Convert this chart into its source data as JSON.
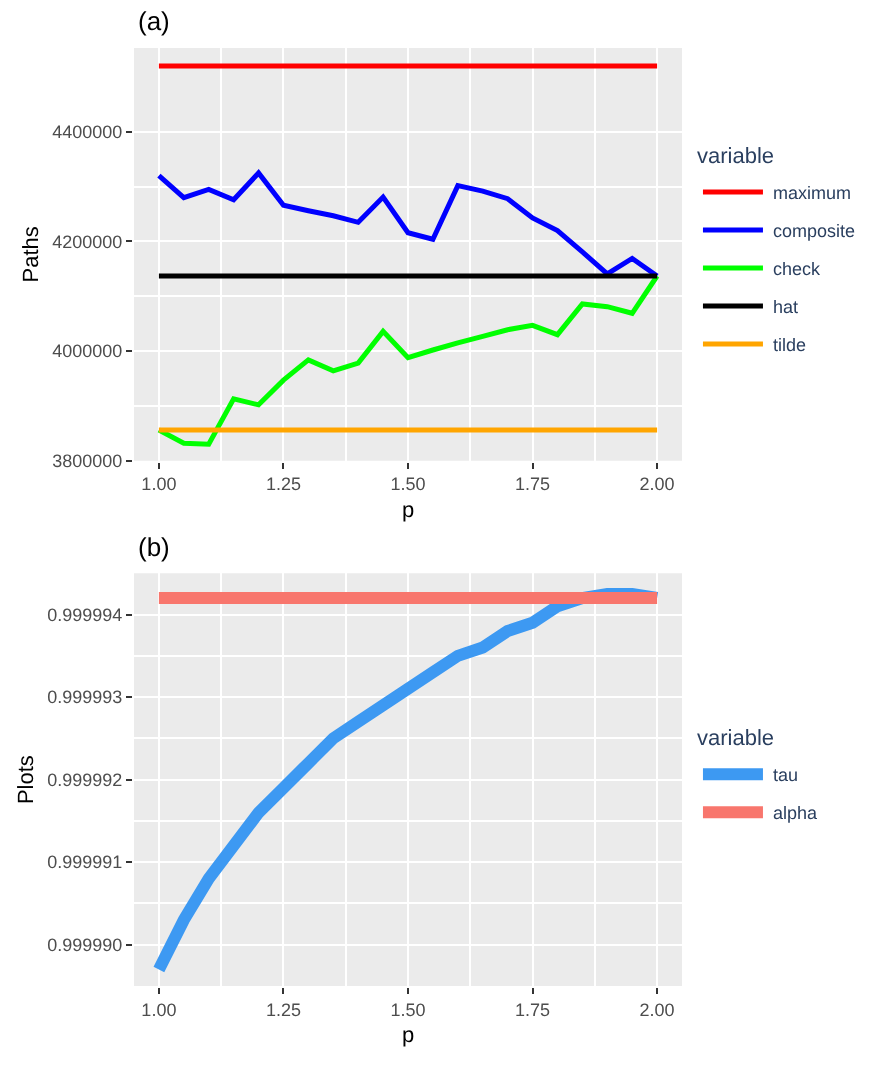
{
  "chart_data": [
    {
      "type": "line",
      "title": "(a)",
      "xlabel": "p",
      "ylabel": "Paths",
      "legend_title": "variable",
      "legend": "right",
      "grid": true,
      "x": [
        1.0,
        1.05,
        1.1,
        1.15,
        1.2,
        1.25,
        1.3,
        1.35,
        1.4,
        1.45,
        1.5,
        1.55,
        1.6,
        1.65,
        1.7,
        1.75,
        1.8,
        1.85,
        1.9,
        1.95,
        2.0
      ],
      "series": [
        {
          "name": "maximum",
          "color": "#ff0000",
          "values": [
            4520000,
            4520000,
            4520000,
            4520000,
            4520000,
            4520000,
            4520000,
            4520000,
            4520000,
            4520000,
            4520000,
            4520000,
            4520000,
            4520000,
            4520000,
            4520000,
            4520000,
            4520000,
            4520000,
            4520000,
            4520000
          ]
        },
        {
          "name": "composite",
          "color": "#0000ff",
          "values": [
            4320000,
            4280000,
            4295000,
            4276000,
            4325000,
            4266000,
            4256000,
            4247000,
            4235000,
            4281000,
            4216000,
            4204000,
            4302000,
            4292000,
            4278000,
            4243000,
            4220000,
            4181000,
            4141000,
            4169000,
            4137000
          ]
        },
        {
          "name": "check",
          "color": "#00ff00",
          "values": [
            3856000,
            3832000,
            3830000,
            3913000,
            3902000,
            3947000,
            3984000,
            3964000,
            3978000,
            4036000,
            3988000,
            4002000,
            4015000,
            4027000,
            4039000,
            4047000,
            4030000,
            4086000,
            4081000,
            4069000,
            4137000
          ]
        },
        {
          "name": "hat",
          "color": "#000000",
          "values": [
            4137000,
            4137000,
            4137000,
            4137000,
            4137000,
            4137000,
            4137000,
            4137000,
            4137000,
            4137000,
            4137000,
            4137000,
            4137000,
            4137000,
            4137000,
            4137000,
            4137000,
            4137000,
            4137000,
            4137000,
            4137000
          ]
        },
        {
          "name": "tilde",
          "color": "#ffa500",
          "values": [
            3856000,
            3856000,
            3856000,
            3856000,
            3856000,
            3856000,
            3856000,
            3856000,
            3856000,
            3856000,
            3856000,
            3856000,
            3856000,
            3856000,
            3856000,
            3856000,
            3856000,
            3856000,
            3856000,
            3856000,
            3856000
          ]
        }
      ],
      "xlim": [
        0.95,
        2.05
      ],
      "xticks": [
        {
          "value": 1,
          "label": "1.00"
        },
        {
          "value": 1.25,
          "label": "1.25"
        },
        {
          "value": 1.5,
          "label": "1.50"
        },
        {
          "value": 1.75,
          "label": "1.75"
        },
        {
          "value": 2,
          "label": "2.00"
        }
      ],
      "ylim": [
        3800000,
        4553000
      ],
      "yticks": [
        3800000,
        4000000,
        4200000,
        4400000
      ]
    },
    {
      "type": "line",
      "title": "(b)",
      "xlabel": "p",
      "ylabel": "Plots",
      "legend_title": "variable",
      "legend": "right",
      "grid": true,
      "x": [
        1.0,
        1.05,
        1.1,
        1.15,
        1.2,
        1.25,
        1.3,
        1.35,
        1.4,
        1.45,
        1.5,
        1.55,
        1.6,
        1.65,
        1.7,
        1.75,
        1.8,
        1.85,
        1.9,
        1.95,
        2.0
      ],
      "series": [
        {
          "name": "tau",
          "color": "#3d99f2",
          "values": [
            0.9999897,
            0.9999903,
            0.9999908,
            0.9999912,
            0.9999916,
            0.9999919,
            0.9999922,
            0.9999925,
            0.9999927,
            0.9999929,
            0.9999931,
            0.9999933,
            0.9999935,
            0.9999936,
            0.9999938,
            0.9999939,
            0.9999941,
            0.9999942,
            0.99999425,
            0.99999425,
            0.9999942
          ]
        },
        {
          "name": "alpha",
          "color": "#f8766d",
          "values": [
            0.9999942,
            0.9999942,
            0.9999942,
            0.9999942,
            0.9999942,
            0.9999942,
            0.9999942,
            0.9999942,
            0.9999942,
            0.9999942,
            0.9999942,
            0.9999942,
            0.9999942,
            0.9999942,
            0.9999942,
            0.9999942,
            0.9999942,
            0.9999942,
            0.9999942,
            0.9999942,
            0.9999942
          ]
        }
      ],
      "xlim": [
        0.95,
        2.05
      ],
      "xticks": [
        {
          "value": 1,
          "label": "1.00"
        },
        {
          "value": 1.25,
          "label": "1.25"
        },
        {
          "value": 1.5,
          "label": "1.50"
        },
        {
          "value": 1.75,
          "label": "1.75"
        },
        {
          "value": 2,
          "label": "2.00"
        }
      ],
      "ylim": [
        0.9999895,
        0.9999945
      ],
      "yticks": [
        {
          "value": 0.99999,
          "label": "0.999990"
        },
        {
          "value": 0.999991,
          "label": "0.999991"
        },
        {
          "value": 0.999992,
          "label": "0.999992"
        },
        {
          "value": 0.999993,
          "label": "0.999993"
        },
        {
          "value": 0.999994,
          "label": "0.999994"
        }
      ]
    }
  ]
}
